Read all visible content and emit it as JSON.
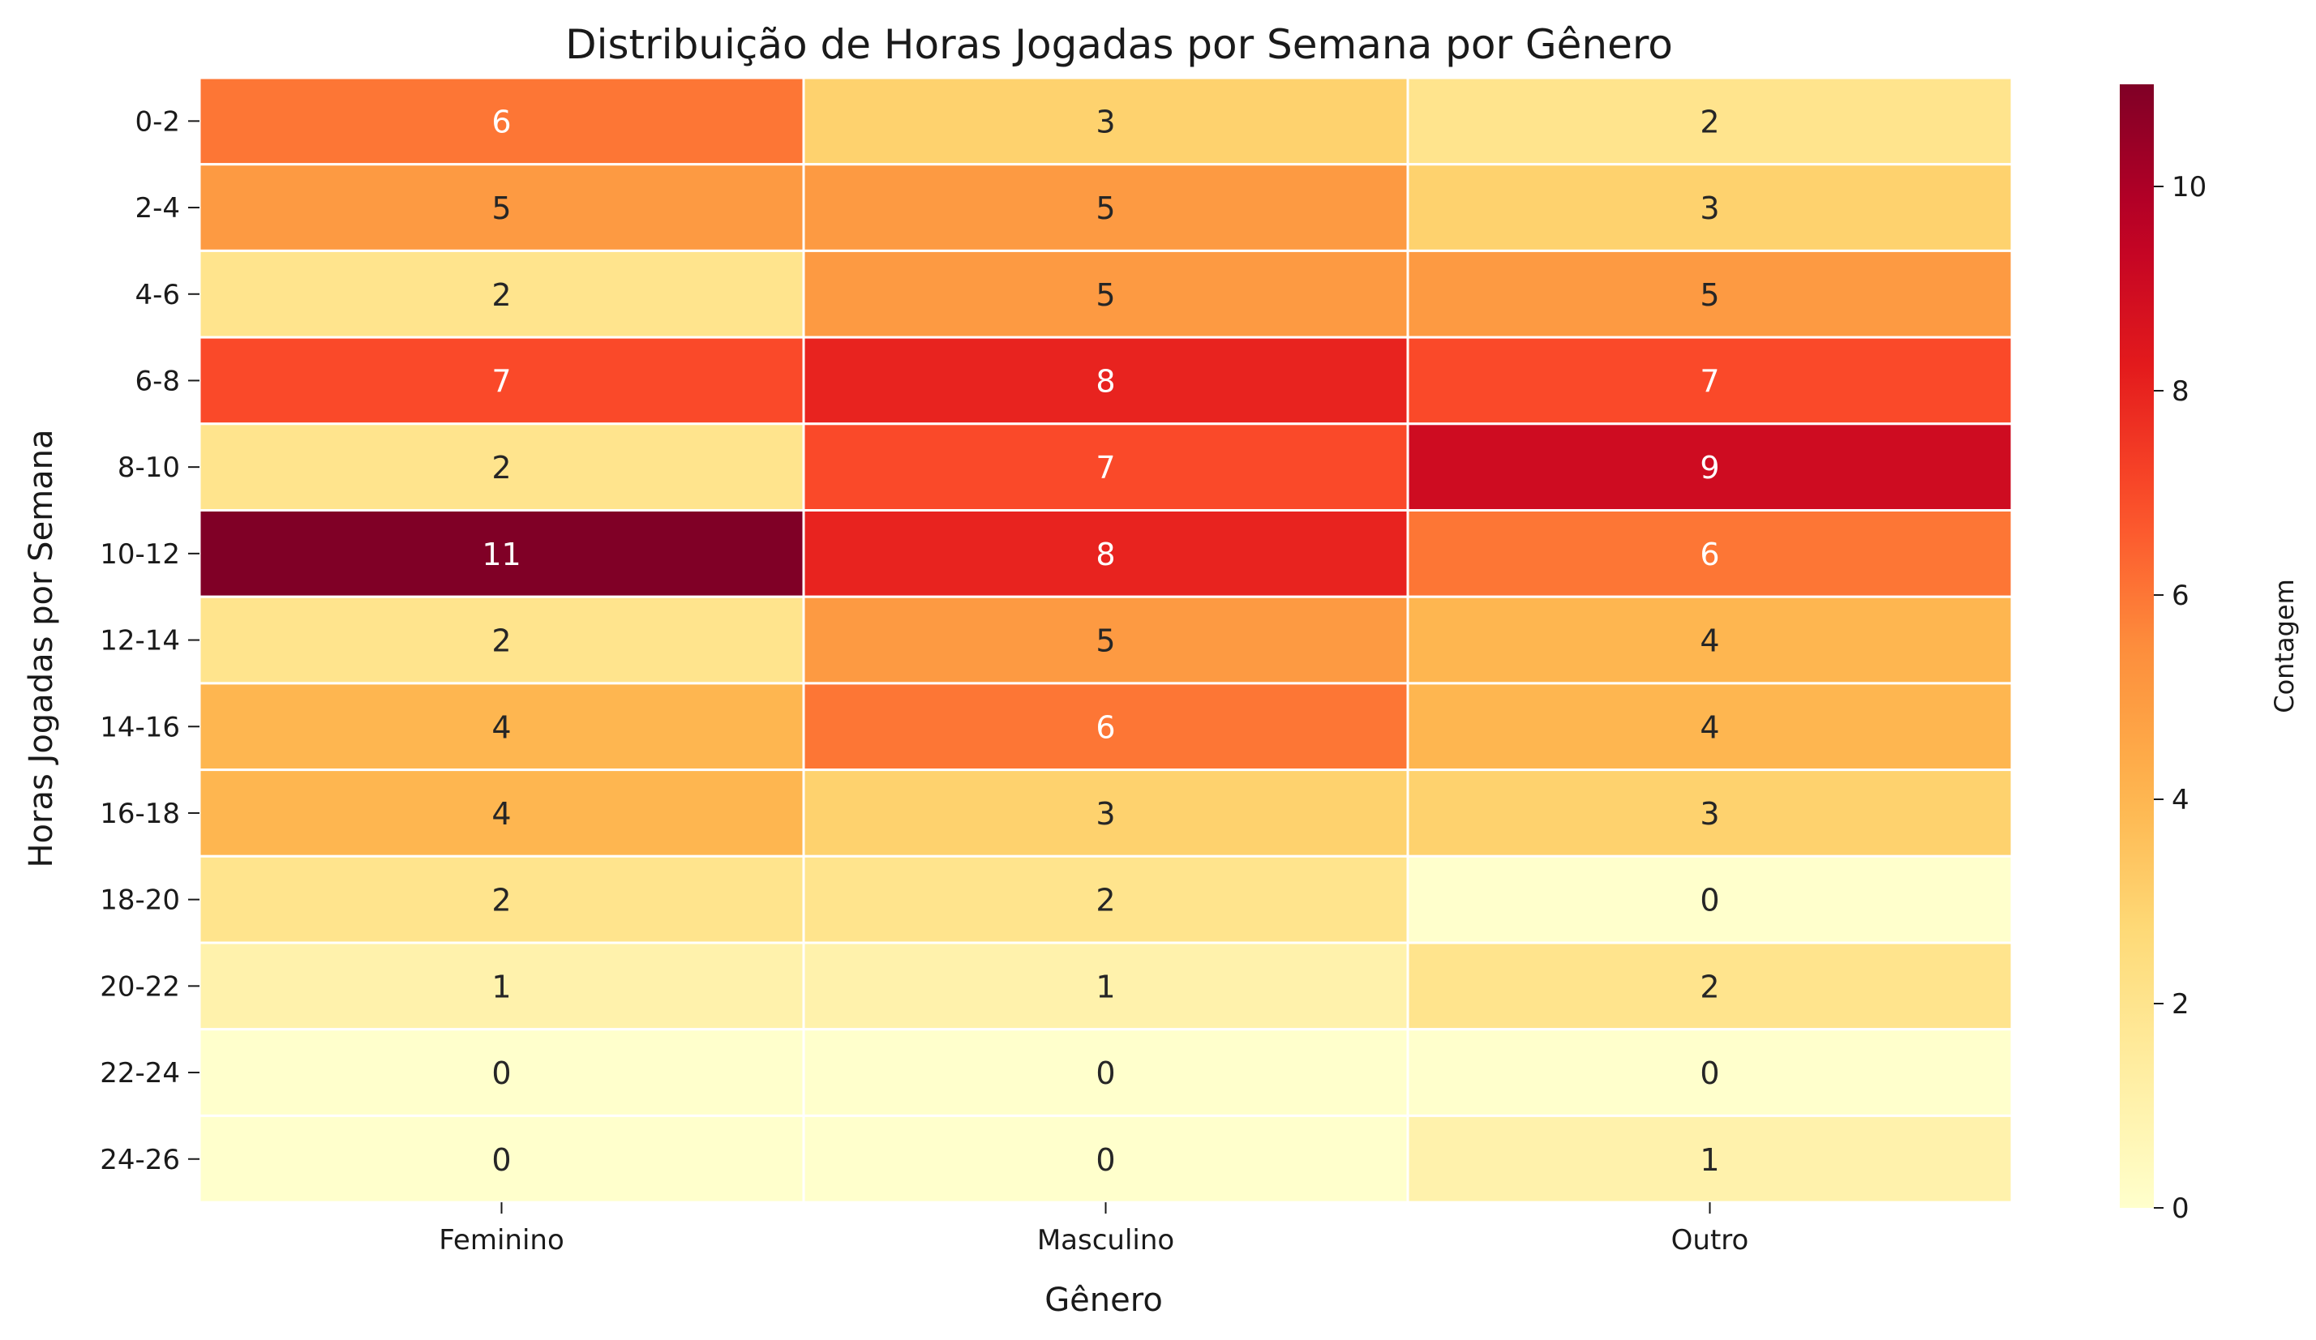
{
  "chart_data": {
    "type": "heatmap",
    "title": "Distribuição de Horas Jogadas por Semana por Gênero",
    "xlabel": "Gênero",
    "ylabel": "Horas Jogadas por Semana",
    "columns": [
      "Feminino",
      "Masculino",
      "Outro"
    ],
    "rows": [
      "0-2",
      "2-4",
      "4-6",
      "6-8",
      "8-10",
      "10-12",
      "12-14",
      "14-16",
      "16-18",
      "18-20",
      "20-22",
      "22-24",
      "24-26"
    ],
    "values": [
      [
        6,
        3,
        2
      ],
      [
        5,
        5,
        3
      ],
      [
        2,
        5,
        5
      ],
      [
        7,
        8,
        7
      ],
      [
        2,
        7,
        9
      ],
      [
        11,
        8,
        6
      ],
      [
        2,
        5,
        4
      ],
      [
        4,
        6,
        4
      ],
      [
        4,
        3,
        3
      ],
      [
        2,
        2,
        0
      ],
      [
        1,
        1,
        2
      ],
      [
        0,
        0,
        0
      ],
      [
        0,
        0,
        1
      ]
    ],
    "colorbar": {
      "label": "Contagem",
      "min": 0,
      "max": 11,
      "ticks": [
        0,
        2,
        4,
        6,
        8,
        10
      ],
      "colormap": "YlOrRd"
    },
    "annotations": true,
    "grid": false,
    "legend": "colorbar-right"
  }
}
